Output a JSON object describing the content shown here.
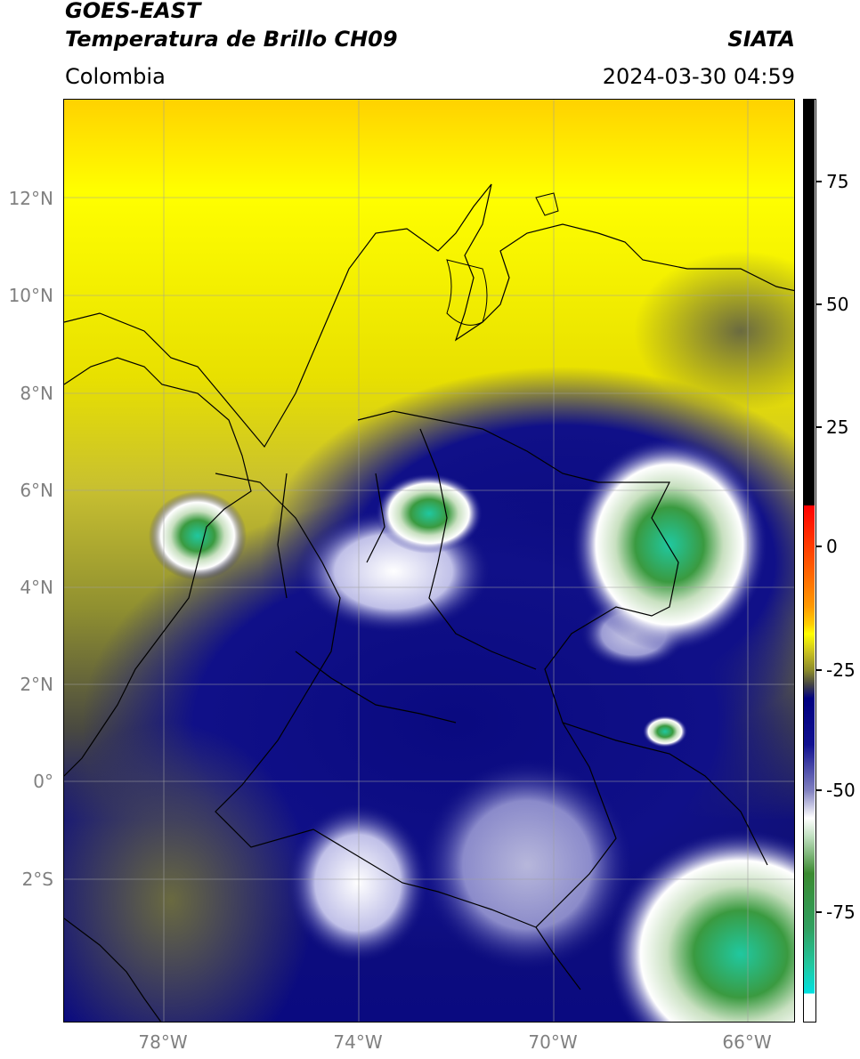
{
  "header": {
    "title_line1": "GOES-EAST",
    "title_line2": "Temperatura de Brillo CH09",
    "source": "SIATA",
    "region": "Colombia",
    "timestamp": "2024-03-30 04:59"
  },
  "map": {
    "latitude_labels": [
      "12°N",
      "10°N",
      "8°N",
      "6°N",
      "4°N",
      "2°N",
      "0°",
      "2°S"
    ],
    "longitude_labels": [
      "78°W",
      "74°W",
      "70°W",
      "66°W"
    ],
    "extent": {
      "lon_min": -80,
      "lon_max": -65,
      "lat_min": -5,
      "lat_max": 14
    },
    "gridlines": true
  },
  "colorbar": {
    "tick_labels": [
      "75",
      "50",
      "25",
      "0",
      "-25",
      "-50",
      "-75"
    ],
    "range": [
      -95,
      90
    ],
    "colors": {
      "warm_black": "#000000",
      "red": "#ff0000",
      "orange": "#ff9900",
      "yellow": "#ffff00",
      "olive": "#8a8a2a",
      "dark_gray": "#444444",
      "navy": "#000080",
      "white": "#ffffff",
      "green": "#3a8a30",
      "teal": "#20c8a0",
      "cyan": "#00e0e0"
    }
  }
}
